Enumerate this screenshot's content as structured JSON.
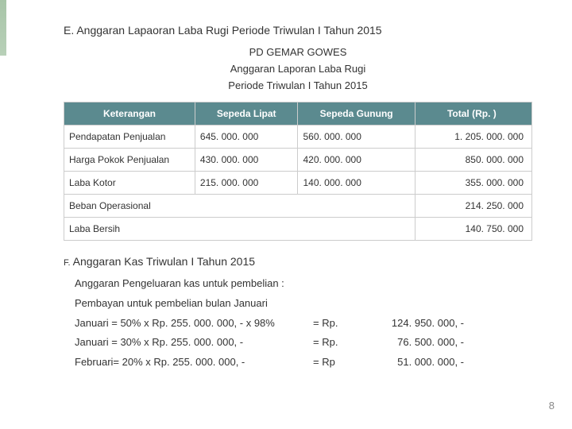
{
  "section_e_title": "E. Anggaran Lapaoran Laba Rugi Periode Triwulan I Tahun 2015",
  "header_line1": "PD GEMAR GOWES",
  "header_line2": "Anggaran  Laporan Laba Rugi",
  "header_line3": "Periode Triwulan I Tahun 2015",
  "table": {
    "columns": [
      "Keterangan",
      "Sepeda Lipat",
      "Sepeda Gunung",
      "Total (Rp. )"
    ],
    "rows": [
      {
        "keterangan": "Pendapatan Penjualan",
        "lipat": "645. 000. 000",
        "gunung": "560. 000. 000",
        "total": "1. 205. 000. 000"
      },
      {
        "keterangan": "Harga Pokok Penjualan",
        "lipat": "430. 000. 000",
        "gunung": "420. 000. 000",
        "total": "850. 000. 000"
      },
      {
        "keterangan": "Laba Kotor",
        "lipat": "215. 000. 000",
        "gunung": "140. 000. 000",
        "total": "355. 000. 000"
      }
    ],
    "span_rows": [
      {
        "keterangan": "Beban Operasional",
        "total": "214. 250. 000"
      },
      {
        "keterangan": "Laba Bersih",
        "total": "140. 750. 000"
      }
    ]
  },
  "section_f_prefix": "F.",
  "section_f_title": " Anggaran Kas Triwulan I Tahun 2015",
  "sub1": "Anggaran Pengeluaran kas  untuk pembelian :",
  "sub2": "Pembayan untuk pembelian bulan Januari",
  "calcs": [
    {
      "label": "Januari   = 50% x Rp. 255. 000. 000, - x 98%",
      "eq": "= Rp.",
      "val": "124. 950. 000, -"
    },
    {
      "label": "Januari   = 30% x Rp. 255. 000. 000, -",
      "eq": "= Rp.",
      "val": "76. 500. 000, -"
    },
    {
      "label": "Februari= 20% x Rp. 255. 000. 000, -",
      "eq": "= Rp",
      "val": "51. 000. 000, -"
    }
  ],
  "page_number": "8"
}
